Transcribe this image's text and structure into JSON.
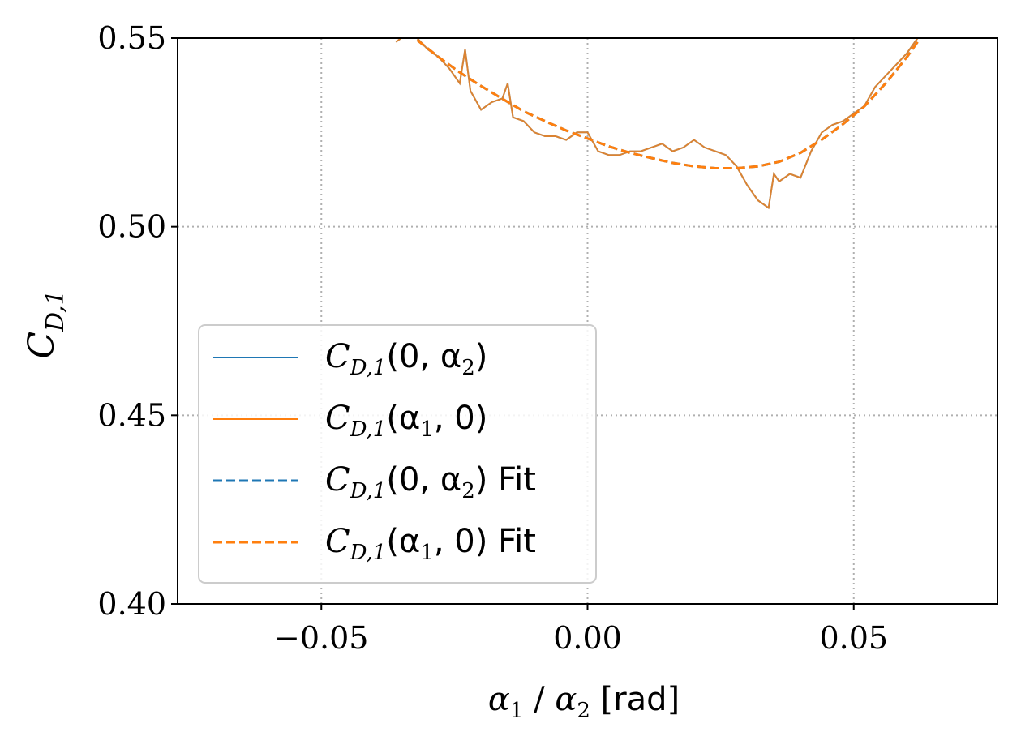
{
  "chart_data": {
    "type": "line",
    "xlabel": "α₁ / α₂ [rad]",
    "ylabel": "C_D,1",
    "xlim": [
      -0.077,
      0.077
    ],
    "ylim": [
      0.4,
      0.55
    ],
    "xticks": [
      -0.05,
      0.0,
      0.05
    ],
    "xtick_labels": [
      "−0.05",
      "0.00",
      "0.05"
    ],
    "yticks": [
      0.4,
      0.45,
      0.5,
      0.55
    ],
    "ytick_labels": [
      "0.40",
      "0.45",
      "0.50",
      "0.55"
    ],
    "grid": true,
    "legend_position": "lower-left",
    "colors": {
      "blue": "#1f77b4",
      "orange": "#ff7f0e",
      "overlap": "#cd853f"
    },
    "series": [
      {
        "name": "C_D,1(0, α₂)",
        "style": "solid",
        "color": "#1f77b4",
        "x": [
          -0.036,
          -0.034,
          -0.032,
          -0.03,
          -0.028,
          -0.026,
          -0.024,
          -0.023,
          -0.022,
          -0.02,
          -0.018,
          -0.016,
          -0.015,
          -0.014,
          -0.012,
          -0.01,
          -0.008,
          -0.006,
          -0.004,
          -0.002,
          0.0,
          0.002,
          0.004,
          0.006,
          0.008,
          0.01,
          0.012,
          0.014,
          0.016,
          0.018,
          0.02,
          0.022,
          0.024,
          0.026,
          0.028,
          0.03,
          0.032,
          0.034,
          0.035,
          0.036,
          0.038,
          0.04,
          0.042,
          0.044,
          0.046,
          0.048,
          0.05,
          0.052,
          0.054,
          0.056,
          0.058,
          0.06,
          0.062
        ],
        "y": [
          0.549,
          0.551,
          0.55,
          0.547,
          0.545,
          0.542,
          0.538,
          0.547,
          0.536,
          0.531,
          0.533,
          0.534,
          0.538,
          0.529,
          0.528,
          0.525,
          0.524,
          0.524,
          0.523,
          0.525,
          0.525,
          0.52,
          0.519,
          0.519,
          0.52,
          0.52,
          0.521,
          0.522,
          0.52,
          0.521,
          0.523,
          0.521,
          0.52,
          0.519,
          0.516,
          0.511,
          0.507,
          0.505,
          0.514,
          0.512,
          0.514,
          0.513,
          0.52,
          0.525,
          0.527,
          0.528,
          0.53,
          0.532,
          0.537,
          0.54,
          0.543,
          0.546,
          0.55
        ]
      },
      {
        "name": "C_D,1(α₁, 0)",
        "style": "solid",
        "color": "#ff7f0e",
        "x": [
          -0.036,
          -0.034,
          -0.032,
          -0.03,
          -0.028,
          -0.026,
          -0.024,
          -0.023,
          -0.022,
          -0.02,
          -0.018,
          -0.016,
          -0.015,
          -0.014,
          -0.012,
          -0.01,
          -0.008,
          -0.006,
          -0.004,
          -0.002,
          0.0,
          0.002,
          0.004,
          0.006,
          0.008,
          0.01,
          0.012,
          0.014,
          0.016,
          0.018,
          0.02,
          0.022,
          0.024,
          0.026,
          0.028,
          0.03,
          0.032,
          0.034,
          0.035,
          0.036,
          0.038,
          0.04,
          0.042,
          0.044,
          0.046,
          0.048,
          0.05,
          0.052,
          0.054,
          0.056,
          0.058,
          0.06,
          0.062
        ],
        "y": [
          0.549,
          0.551,
          0.55,
          0.547,
          0.545,
          0.542,
          0.538,
          0.547,
          0.536,
          0.531,
          0.533,
          0.534,
          0.538,
          0.529,
          0.528,
          0.525,
          0.524,
          0.524,
          0.523,
          0.525,
          0.525,
          0.52,
          0.519,
          0.519,
          0.52,
          0.52,
          0.521,
          0.522,
          0.52,
          0.521,
          0.523,
          0.521,
          0.52,
          0.519,
          0.516,
          0.511,
          0.507,
          0.505,
          0.514,
          0.512,
          0.514,
          0.513,
          0.52,
          0.525,
          0.527,
          0.528,
          0.53,
          0.532,
          0.537,
          0.54,
          0.543,
          0.546,
          0.55
        ]
      },
      {
        "name": "C_D,1(0, α₂) Fit",
        "style": "dashed",
        "color": "#1f77b4",
        "x": [
          -0.032,
          -0.028,
          -0.024,
          -0.02,
          -0.016,
          -0.012,
          -0.008,
          -0.004,
          0.0,
          0.004,
          0.008,
          0.012,
          0.016,
          0.02,
          0.024,
          0.028,
          0.032,
          0.036,
          0.04,
          0.044,
          0.048,
          0.052,
          0.056,
          0.06,
          0.062
        ],
        "y": [
          0.5495,
          0.545,
          0.5409,
          0.5373,
          0.5339,
          0.5306,
          0.528,
          0.5255,
          0.5234,
          0.5213,
          0.5196,
          0.5182,
          0.5169,
          0.516,
          0.5155,
          0.5155,
          0.516,
          0.5172,
          0.5196,
          0.5231,
          0.5272,
          0.5319,
          0.538,
          0.545,
          0.549
        ]
      },
      {
        "name": "C_D,1(α₁, 0) Fit",
        "style": "dashed",
        "color": "#ff7f0e",
        "x": [
          -0.032,
          -0.028,
          -0.024,
          -0.02,
          -0.016,
          -0.012,
          -0.008,
          -0.004,
          0.0,
          0.004,
          0.008,
          0.012,
          0.016,
          0.02,
          0.024,
          0.028,
          0.032,
          0.036,
          0.04,
          0.044,
          0.048,
          0.052,
          0.056,
          0.06,
          0.062
        ],
        "y": [
          0.5495,
          0.545,
          0.5409,
          0.5373,
          0.5339,
          0.5306,
          0.528,
          0.5255,
          0.5234,
          0.5213,
          0.5196,
          0.5182,
          0.5169,
          0.516,
          0.5155,
          0.5155,
          0.516,
          0.5172,
          0.5196,
          0.5231,
          0.5272,
          0.5319,
          0.538,
          0.545,
          0.549
        ]
      }
    ],
    "legend_entries": [
      {
        "label_main": "C",
        "label_sub": "D,1",
        "label_rest": "(0, α",
        "label_sub2": "2",
        "label_end": ")",
        "style": "solid",
        "color": "#1f77b4"
      },
      {
        "label_main": "C",
        "label_sub": "D,1",
        "label_rest": "(α",
        "label_sub2": "1",
        "label_end": ", 0)",
        "style": "solid",
        "color": "#ff7f0e"
      },
      {
        "label_main": "C",
        "label_sub": "D,1",
        "label_rest": "(0, α",
        "label_sub2": "2",
        "label_end": ") Fit",
        "style": "dashed",
        "color": "#1f77b4"
      },
      {
        "label_main": "C",
        "label_sub": "D,1",
        "label_rest": "(α",
        "label_sub2": "1",
        "label_end": ", 0) Fit",
        "style": "dashed",
        "color": "#ff7f0e"
      }
    ]
  }
}
